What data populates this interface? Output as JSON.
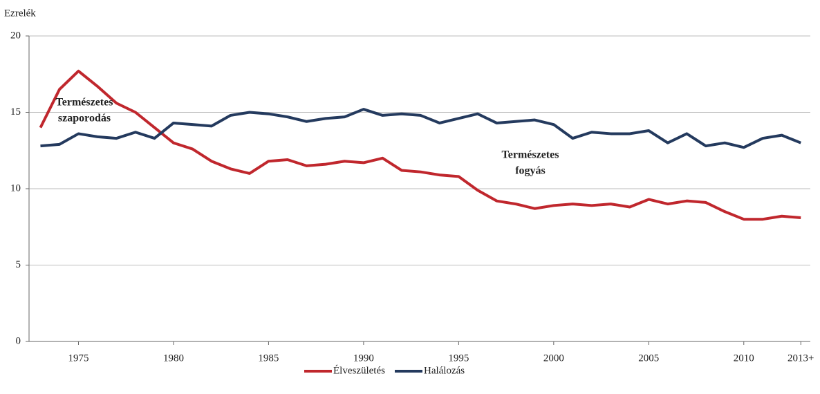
{
  "chart_data": {
    "type": "line",
    "ylabel": "Ezrelék",
    "x": [
      1973,
      1974,
      1975,
      1976,
      1977,
      1978,
      1979,
      1980,
      1981,
      1982,
      1983,
      1984,
      1985,
      1986,
      1987,
      1988,
      1989,
      1990,
      1991,
      1992,
      1993,
      1994,
      1995,
      1996,
      1997,
      1998,
      1999,
      2000,
      2001,
      2002,
      2003,
      2004,
      2005,
      2006,
      2007,
      2008,
      2009,
      2010,
      2011,
      2012,
      2013
    ],
    "series": [
      {
        "name": "Élveszületés",
        "color": "#c0272d",
        "values": [
          14.0,
          16.5,
          17.7,
          16.7,
          15.6,
          15.0,
          14.0,
          13.0,
          12.6,
          11.8,
          11.3,
          11.0,
          11.8,
          11.9,
          11.5,
          11.6,
          11.8,
          11.7,
          12.0,
          11.2,
          11.1,
          10.9,
          10.8,
          9.9,
          9.2,
          9.0,
          8.7,
          8.9,
          9.0,
          8.9,
          9.0,
          8.8,
          9.3,
          9.0,
          9.2,
          9.1,
          8.5,
          8.0,
          8.0,
          8.2,
          8.1
        ]
      },
      {
        "name": "Halálozás",
        "color": "#243a5e",
        "values": [
          12.8,
          12.9,
          13.6,
          13.4,
          13.3,
          13.7,
          13.3,
          14.3,
          14.2,
          14.1,
          14.8,
          15.0,
          14.9,
          14.7,
          14.4,
          14.6,
          14.7,
          15.2,
          14.8,
          14.9,
          14.8,
          14.3,
          14.6,
          14.9,
          14.3,
          14.4,
          14.5,
          14.2,
          13.3,
          13.7,
          13.6,
          13.6,
          13.8,
          13.0,
          13.6,
          12.8,
          13.0,
          12.7,
          13.3,
          13.5,
          13.0
        ]
      }
    ],
    "xlim": [
      1972.4,
      2013.5
    ],
    "xticks": [
      1975,
      1980,
      1985,
      1990,
      1995,
      2000,
      2005,
      2010,
      {
        "value": 2013,
        "label": "2013+"
      }
    ],
    "ylim": [
      0,
      20
    ],
    "yticks": [
      0,
      5,
      10,
      15,
      20
    ],
    "grid": true,
    "annotations": [
      [
        "Természetes",
        "szaporodás"
      ],
      [
        "Természetes",
        "fogyás"
      ]
    ]
  }
}
